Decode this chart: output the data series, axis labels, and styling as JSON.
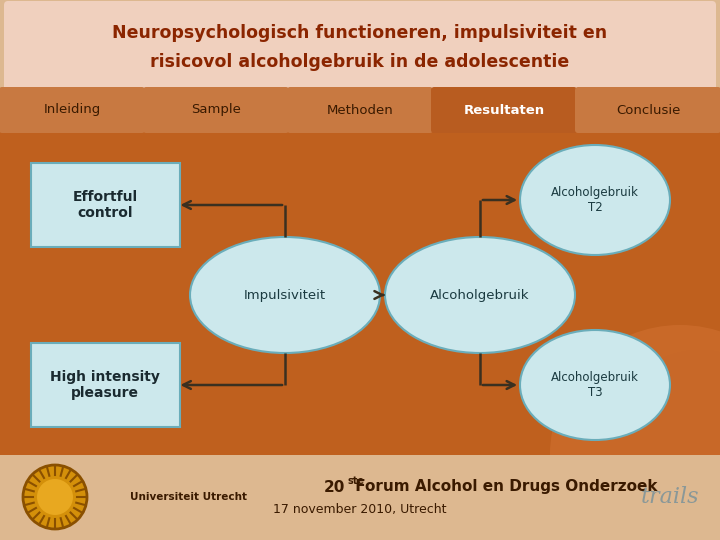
{
  "title_line1": "Neuropsychologisch functioneren, impulsiviteit en",
  "title_line2": "risicovol alcoholgebruik in de adolescentie",
  "title_bg": "#f0d0be",
  "title_color": "#8B2500",
  "nav_tabs": [
    "Inleiding",
    "Sample",
    "Methoden",
    "Resultaten",
    "Conclusie"
  ],
  "nav_active": "Resultaten",
  "nav_bg_inactive": "#c87941",
  "nav_bg_active": "#b85c20",
  "nav_text_inactive": "#3a1a00",
  "nav_text_active": "#ffffff",
  "main_bg": "#bf601e",
  "node_fill": "#cce8ec",
  "node_stroke": "#6aadba",
  "box_fill": "#cce8ec",
  "box_stroke": "#6aadba",
  "arrow_color": "#3a3020",
  "footer_bg": "#ddb890",
  "footer_color": "#3a1a00",
  "footer_text3": "17 november 2010, Utrecht"
}
